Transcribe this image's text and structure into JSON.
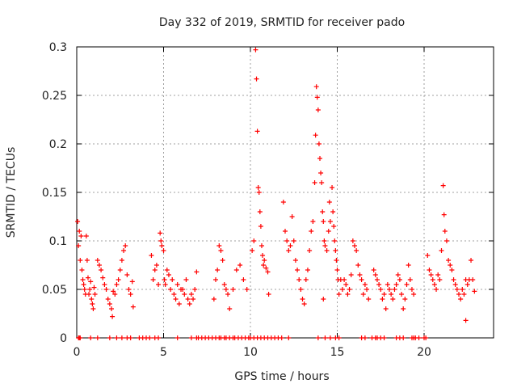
{
  "chart_data": {
    "type": "scatter",
    "title": "Day 332 of 2019, SRMTID for receiver pado",
    "xlabel": "GPS time / hours",
    "ylabel": "SRMTID / TECUs",
    "xlim": [
      0,
      24
    ],
    "ylim": [
      0,
      0.3
    ],
    "xticks": [
      0,
      5,
      10,
      15,
      20
    ],
    "xtick_labels": [
      "0",
      "5",
      "10",
      "15",
      "20"
    ],
    "yticks": [
      0,
      0.05,
      0.1,
      0.15,
      0.2,
      0.25,
      0.3
    ],
    "ytick_labels": [
      "0",
      "0.05",
      "0.1",
      "0.15",
      "0.2",
      "0.25",
      "0.3"
    ],
    "grid": true,
    "marker": "+",
    "marker_color": "#ff0000",
    "series": [
      {
        "name": "SRMTID",
        "points": [
          [
            0.05,
            0.12
          ],
          [
            0.1,
            0.095
          ],
          [
            0.15,
            0.11
          ],
          [
            0.2,
            0.08
          ],
          [
            0.25,
            0.105
          ],
          [
            0.3,
            0.07
          ],
          [
            0.35,
            0.06
          ],
          [
            0.4,
            0.055
          ],
          [
            0.45,
            0.05
          ],
          [
            0.5,
            0.045
          ],
          [
            0.55,
            0.105
          ],
          [
            0.6,
            0.08
          ],
          [
            0.65,
            0.062
          ],
          [
            0.7,
            0.045
          ],
          [
            0.75,
            0.05
          ],
          [
            0.8,
            0.058
          ],
          [
            0.85,
            0.04
          ],
          [
            0.9,
            0.035
          ],
          [
            0.95,
            0.03
          ],
          [
            1.0,
            0.052
          ],
          [
            1.05,
            0.045
          ],
          [
            1.2,
            0.08
          ],
          [
            1.3,
            0.075
          ],
          [
            1.4,
            0.07
          ],
          [
            1.5,
            0.062
          ],
          [
            1.6,
            0.055
          ],
          [
            1.7,
            0.05
          ],
          [
            1.8,
            0.04
          ],
          [
            1.9,
            0.035
          ],
          [
            2.0,
            0.03
          ],
          [
            2.05,
            0.022
          ],
          [
            2.1,
            0.048
          ],
          [
            2.2,
            0.045
          ],
          [
            2.3,
            0.055
          ],
          [
            2.4,
            0.06
          ],
          [
            2.5,
            0.07
          ],
          [
            2.6,
            0.08
          ],
          [
            2.7,
            0.09
          ],
          [
            2.8,
            0.095
          ],
          [
            2.9,
            0.065
          ],
          [
            3.0,
            0.05
          ],
          [
            3.1,
            0.045
          ],
          [
            3.2,
            0.058
          ],
          [
            3.25,
            0.032
          ],
          [
            4.3,
            0.085
          ],
          [
            4.4,
            0.06
          ],
          [
            4.5,
            0.07
          ],
          [
            4.6,
            0.075
          ],
          [
            4.7,
            0.055
          ],
          [
            4.8,
            0.108
          ],
          [
            4.85,
            0.1
          ],
          [
            4.9,
            0.095
          ],
          [
            5.0,
            0.09
          ],
          [
            5.05,
            0.06
          ],
          [
            5.1,
            0.055
          ],
          [
            5.2,
            0.07
          ],
          [
            5.3,
            0.065
          ],
          [
            5.4,
            0.05
          ],
          [
            5.5,
            0.06
          ],
          [
            5.6,
            0.045
          ],
          [
            5.7,
            0.04
          ],
          [
            5.8,
            0.055
          ],
          [
            5.9,
            0.035
          ],
          [
            6.0,
            0.05
          ],
          [
            6.1,
            0.05
          ],
          [
            6.2,
            0.045
          ],
          [
            6.3,
            0.06
          ],
          [
            6.4,
            0.04
          ],
          [
            6.5,
            0.035
          ],
          [
            6.6,
            0.045
          ],
          [
            6.7,
            0.04
          ],
          [
            6.8,
            0.05
          ],
          [
            6.9,
            0.068
          ],
          [
            7.9,
            0.04
          ],
          [
            8.0,
            0.06
          ],
          [
            8.1,
            0.07
          ],
          [
            8.2,
            0.095
          ],
          [
            8.3,
            0.09
          ],
          [
            8.4,
            0.08
          ],
          [
            8.5,
            0.055
          ],
          [
            8.6,
            0.05
          ],
          [
            8.7,
            0.045
          ],
          [
            8.8,
            0.03
          ],
          [
            9.0,
            0.05
          ],
          [
            9.2,
            0.07
          ],
          [
            9.4,
            0.075
          ],
          [
            9.6,
            0.06
          ],
          [
            9.8,
            0.05
          ],
          [
            10.1,
            0.09
          ],
          [
            10.2,
            0.1
          ],
          [
            10.3,
            0.297
          ],
          [
            10.35,
            0.267
          ],
          [
            10.4,
            0.213
          ],
          [
            10.45,
            0.155
          ],
          [
            10.5,
            0.15
          ],
          [
            10.55,
            0.13
          ],
          [
            10.6,
            0.115
          ],
          [
            10.65,
            0.095
          ],
          [
            10.7,
            0.085
          ],
          [
            10.75,
            0.075
          ],
          [
            10.8,
            0.08
          ],
          [
            10.9,
            0.072
          ],
          [
            11.0,
            0.068
          ],
          [
            11.05,
            0.045
          ],
          [
            11.9,
            0.14
          ],
          [
            12.0,
            0.11
          ],
          [
            12.1,
            0.1
          ],
          [
            12.2,
            0.09
          ],
          [
            12.3,
            0.095
          ],
          [
            12.4,
            0.125
          ],
          [
            12.5,
            0.1
          ],
          [
            12.6,
            0.08
          ],
          [
            12.7,
            0.07
          ],
          [
            12.8,
            0.06
          ],
          [
            12.9,
            0.05
          ],
          [
            13.0,
            0.04
          ],
          [
            13.1,
            0.035
          ],
          [
            13.2,
            0.06
          ],
          [
            13.3,
            0.07
          ],
          [
            13.4,
            0.09
          ],
          [
            13.5,
            0.11
          ],
          [
            13.6,
            0.12
          ],
          [
            13.7,
            0.16
          ],
          [
            13.75,
            0.209
          ],
          [
            13.8,
            0.259
          ],
          [
            13.85,
            0.248
          ],
          [
            13.9,
            0.235
          ],
          [
            13.95,
            0.2
          ],
          [
            14.0,
            0.185
          ],
          [
            14.05,
            0.17
          ],
          [
            14.1,
            0.16
          ],
          [
            14.15,
            0.13
          ],
          [
            14.2,
            0.12
          ],
          [
            14.25,
            0.1
          ],
          [
            14.3,
            0.095
          ],
          [
            14.4,
            0.09
          ],
          [
            14.5,
            0.11
          ],
          [
            14.55,
            0.14
          ],
          [
            14.6,
            0.12
          ],
          [
            14.7,
            0.155
          ],
          [
            14.75,
            0.13
          ],
          [
            14.8,
            0.115
          ],
          [
            14.85,
            0.1
          ],
          [
            14.9,
            0.09
          ],
          [
            14.95,
            0.08
          ],
          [
            15.0,
            0.07
          ],
          [
            15.05,
            0.06
          ],
          [
            15.1,
            0.045
          ],
          [
            14.2,
            0.04
          ],
          [
            15.2,
            0.06
          ],
          [
            15.3,
            0.05
          ],
          [
            15.4,
            0.06
          ],
          [
            15.5,
            0.055
          ],
          [
            15.6,
            0.045
          ],
          [
            15.7,
            0.05
          ],
          [
            15.8,
            0.065
          ],
          [
            15.9,
            0.1
          ],
          [
            16.0,
            0.095
          ],
          [
            16.1,
            0.09
          ],
          [
            16.2,
            0.075
          ],
          [
            16.3,
            0.065
          ],
          [
            16.4,
            0.06
          ],
          [
            16.5,
            0.045
          ],
          [
            16.6,
            0.055
          ],
          [
            16.7,
            0.05
          ],
          [
            16.8,
            0.04
          ],
          [
            17.1,
            0.07
          ],
          [
            17.2,
            0.065
          ],
          [
            17.3,
            0.06
          ],
          [
            17.4,
            0.055
          ],
          [
            17.5,
            0.05
          ],
          [
            17.6,
            0.04
          ],
          [
            17.7,
            0.045
          ],
          [
            17.8,
            0.03
          ],
          [
            17.9,
            0.055
          ],
          [
            18.0,
            0.05
          ],
          [
            18.1,
            0.045
          ],
          [
            18.2,
            0.04
          ],
          [
            18.3,
            0.05
          ],
          [
            18.4,
            0.055
          ],
          [
            18.5,
            0.065
          ],
          [
            18.6,
            0.06
          ],
          [
            18.7,
            0.045
          ],
          [
            18.8,
            0.03
          ],
          [
            18.9,
            0.04
          ],
          [
            19.0,
            0.055
          ],
          [
            19.1,
            0.075
          ],
          [
            19.2,
            0.06
          ],
          [
            19.3,
            0.05
          ],
          [
            19.4,
            0.045
          ],
          [
            20.2,
            0.085
          ],
          [
            20.3,
            0.07
          ],
          [
            20.4,
            0.065
          ],
          [
            20.5,
            0.06
          ],
          [
            20.6,
            0.055
          ],
          [
            20.7,
            0.05
          ],
          [
            20.8,
            0.065
          ],
          [
            20.9,
            0.06
          ],
          [
            21.0,
            0.09
          ],
          [
            21.1,
            0.157
          ],
          [
            21.15,
            0.127
          ],
          [
            21.2,
            0.11
          ],
          [
            21.3,
            0.1
          ],
          [
            21.4,
            0.08
          ],
          [
            21.5,
            0.075
          ],
          [
            21.6,
            0.07
          ],
          [
            21.7,
            0.06
          ],
          [
            21.8,
            0.055
          ],
          [
            21.9,
            0.05
          ],
          [
            22.0,
            0.045
          ],
          [
            22.1,
            0.04
          ],
          [
            22.2,
            0.05
          ],
          [
            22.3,
            0.045
          ],
          [
            22.4,
            0.06
          ],
          [
            22.5,
            0.055
          ],
          [
            22.6,
            0.06
          ],
          [
            22.7,
            0.08
          ],
          [
            22.8,
            0.06
          ],
          [
            22.9,
            0.048
          ],
          [
            22.4,
            0.018
          ]
        ]
      }
    ],
    "zero_points_x": [
      0.1,
      0.15,
      0.2,
      0.8,
      1.2,
      1.9,
      2.3,
      2.6,
      2.9,
      3.1,
      3.6,
      3.8,
      4.0,
      4.2,
      4.5,
      4.7,
      5.8,
      6.6,
      6.9,
      7.0,
      7.2,
      7.4,
      7.6,
      7.8,
      8.0,
      8.2,
      8.3,
      8.5,
      8.6,
      8.8,
      9.0,
      9.1,
      9.3,
      9.5,
      9.7,
      9.9,
      10.0,
      10.2,
      10.4,
      10.6,
      10.8,
      11.0,
      11.2,
      11.4,
      11.6,
      11.8,
      12.2,
      13.9,
      14.3,
      14.6,
      14.9,
      15.1,
      16.4,
      16.6,
      17.0,
      17.2,
      17.3,
      17.5,
      17.7,
      18.4,
      18.6,
      18.8,
      19.3,
      19.4,
      19.5,
      19.7,
      20.0,
      20.1
    ]
  }
}
